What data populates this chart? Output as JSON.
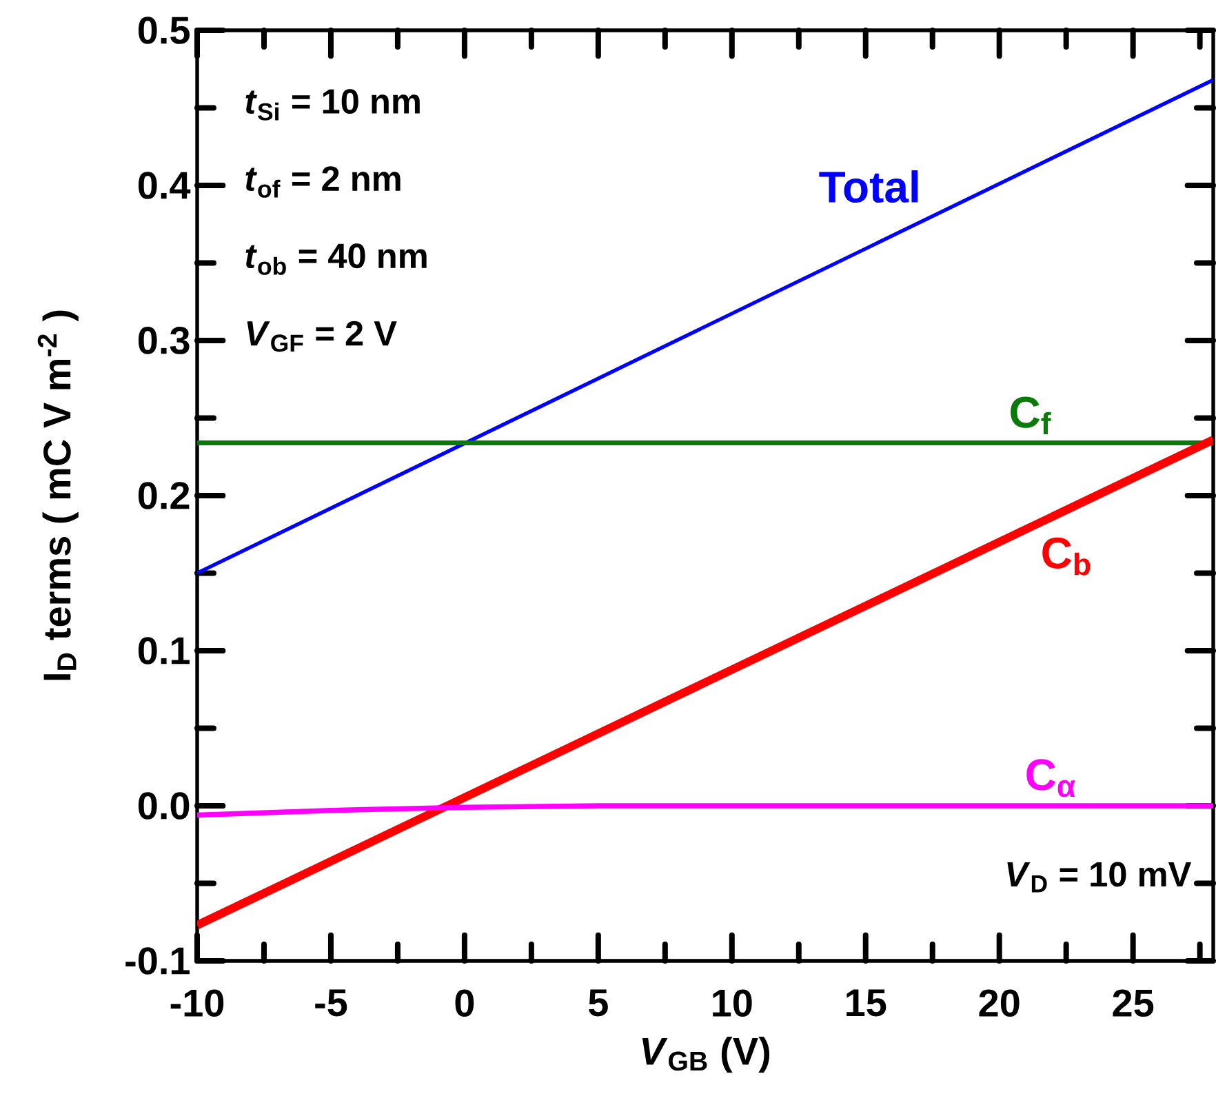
{
  "chart_data": {
    "type": "line",
    "xlabel": "*V*$_{GB}$ (V)",
    "ylabel": "I$_{D}$ terms ( mC V m$^{-2}$ )",
    "xlim": [
      -10,
      28
    ],
    "ylim": [
      -0.1,
      0.5
    ],
    "xticks": [
      -10,
      {
        "value": -7.5,
        "label": null
      },
      -5,
      {
        "value": -2.5,
        "label": null
      },
      0,
      {
        "value": 2.5,
        "label": null
      },
      5,
      {
        "value": 7.5,
        "label": null
      },
      10,
      {
        "value": 12.5,
        "label": null
      },
      15,
      {
        "value": 17.5,
        "label": null
      },
      20,
      {
        "value": 22.5,
        "label": null
      },
      25,
      {
        "value": 27.5,
        "label": null
      }
    ],
    "yticks": [
      -0.1,
      {
        "value": -0.05,
        "label": null
      },
      "0.0",
      {
        "value": 0.05,
        "label": null
      },
      0.1,
      {
        "value": 0.15,
        "label": null
      },
      0.2,
      {
        "value": 0.25,
        "label": null
      },
      0.3,
      {
        "value": 0.35,
        "label": null
      },
      0.4,
      {
        "value": 0.45,
        "label": null
      },
      0.5
    ],
    "grid": false,
    "marker": "none",
    "line_style": "solid",
    "x": [
      -10,
      28
    ],
    "series": [
      {
        "name": "Total",
        "color": "#0000ff",
        "values": [
          0.15,
          0.468
        ]
      },
      {
        "name": "C$_{f}$",
        "color": "#0a7a0a",
        "values": [
          0.234,
          0.234
        ]
      },
      {
        "name": "C$_{b}$",
        "color": "#ff0000",
        "values": [
          -0.077,
          0.236
        ]
      },
      {
        "name": "C$_{α}$",
        "color": "#ff00ff",
        "x": [
          -10,
          -5,
          0,
          5,
          28
        ],
        "values": [
          -0.006,
          -0.003,
          -0.001,
          0.0,
          0.0
        ]
      }
    ],
    "annotations": [
      "*t*$_{Si}$ = 10 nm",
      "*t*$_{of}$ = 2 nm",
      "*t*$_{ob}$ = 40 nm",
      "*V*$_{GF}$ = 2 V",
      "*V*$_{D}$ = 10 mV"
    ]
  }
}
